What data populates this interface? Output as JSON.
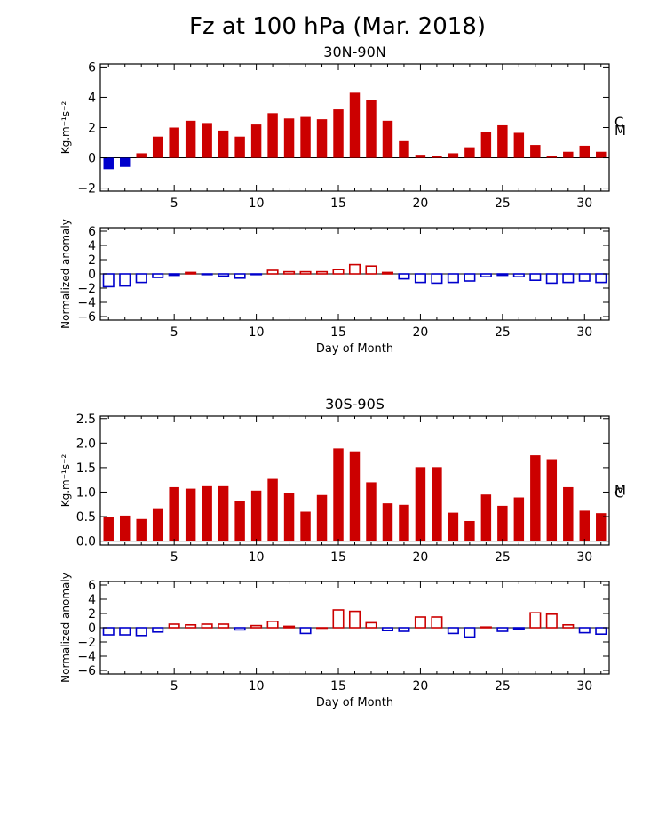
{
  "title": "Fz at 100 hPa (Mar. 2018)",
  "colors": {
    "positive": "#cc0000",
    "negative": "#0000cc",
    "frame": "#000000"
  },
  "chart_data": [
    {
      "id": "nh-fz",
      "type": "bar",
      "title": "30N-90N",
      "ylabel": "Kg.m⁻¹s⁻²",
      "xlabel": "",
      "fill": true,
      "ylim": [
        -2.2,
        6.2
      ],
      "xlim": [
        0.5,
        31.5
      ],
      "yticks": [
        -2,
        0,
        2,
        4,
        6
      ],
      "ytick_labels": [
        "−2",
        "0",
        "2",
        "4",
        "6"
      ],
      "xticks": [
        5,
        10,
        15,
        20,
        25,
        30
      ],
      "xtick_labels": [
        "5",
        "10",
        "15",
        "20",
        "25",
        "30"
      ],
      "x": [
        1,
        2,
        3,
        4,
        5,
        6,
        7,
        8,
        9,
        10,
        11,
        12,
        13,
        14,
        15,
        16,
        17,
        18,
        19,
        20,
        21,
        22,
        23,
        24,
        25,
        26,
        27,
        28,
        29,
        30,
        31
      ],
      "values": [
        -0.75,
        -0.6,
        0.3,
        1.4,
        2.0,
        2.45,
        2.3,
        1.8,
        1.4,
        2.2,
        2.95,
        2.6,
        2.7,
        2.55,
        3.2,
        4.3,
        3.85,
        2.45,
        1.1,
        0.2,
        0.1,
        0.3,
        0.7,
        1.7,
        2.15,
        1.65,
        0.85,
        0.15,
        0.4,
        0.8,
        0.4
      ],
      "markers": [
        {
          "label": "C",
          "value": 2.4
        },
        {
          "label": "M",
          "value": 1.85
        }
      ]
    },
    {
      "id": "nh-anom",
      "type": "bar",
      "title": "",
      "ylabel": "Normalized anomaly",
      "xlabel": "Day of Month",
      "fill": false,
      "ylim": [
        -6.5,
        6.5
      ],
      "xlim": [
        0.5,
        31.5
      ],
      "yticks": [
        -6,
        -4,
        -2,
        0,
        2,
        4,
        6
      ],
      "ytick_labels": [
        "−6",
        "−4",
        "−2",
        "0",
        "2",
        "4",
        "6"
      ],
      "xticks": [
        5,
        10,
        15,
        20,
        25,
        30
      ],
      "xtick_labels": [
        "5",
        "10",
        "15",
        "20",
        "25",
        "30"
      ],
      "x": [
        1,
        2,
        3,
        4,
        5,
        6,
        7,
        8,
        9,
        10,
        11,
        12,
        13,
        14,
        15,
        16,
        17,
        18,
        19,
        20,
        21,
        22,
        23,
        24,
        25,
        26,
        27,
        28,
        29,
        30,
        31
      ],
      "values": [
        -1.8,
        -1.7,
        -1.2,
        -0.5,
        -0.2,
        0.2,
        -0.1,
        -0.3,
        -0.6,
        -0.1,
        0.5,
        0.3,
        0.3,
        0.3,
        0.6,
        1.3,
        1.1,
        0.2,
        -0.7,
        -1.2,
        -1.3,
        -1.2,
        -1.0,
        -0.4,
        -0.2,
        -0.4,
        -0.9,
        -1.3,
        -1.2,
        -1.0,
        -1.2
      ],
      "markers": []
    },
    {
      "id": "sh-fz",
      "type": "bar",
      "title": "30S-90S",
      "ylabel": "Kg.m⁻¹s⁻²",
      "xlabel": "",
      "fill": true,
      "ylim": [
        -0.08,
        2.55
      ],
      "xlim": [
        0.5,
        31.5
      ],
      "yticks": [
        0.0,
        0.5,
        1.0,
        1.5,
        2.0,
        2.5
      ],
      "ytick_labels": [
        "0.0",
        "0.5",
        "1.0",
        "1.5",
        "2.0",
        "2.5"
      ],
      "xticks": [
        5,
        10,
        15,
        20,
        25,
        30
      ],
      "xtick_labels": [
        "5",
        "10",
        "15",
        "20",
        "25",
        "30"
      ],
      "x": [
        1,
        2,
        3,
        4,
        5,
        6,
        7,
        8,
        9,
        10,
        11,
        12,
        13,
        14,
        15,
        16,
        17,
        18,
        19,
        20,
        21,
        22,
        23,
        24,
        25,
        26,
        27,
        28,
        29,
        30,
        31
      ],
      "values": [
        0.5,
        0.52,
        0.45,
        0.67,
        1.1,
        1.07,
        1.12,
        1.12,
        0.81,
        1.03,
        1.27,
        0.98,
        0.6,
        0.94,
        1.89,
        1.83,
        1.2,
        0.77,
        0.74,
        1.51,
        1.51,
        0.58,
        0.41,
        0.95,
        0.72,
        0.89,
        1.75,
        1.67,
        1.1,
        0.62,
        0.57
      ],
      "markers": [
        {
          "label": "C",
          "value": 1.0
        },
        {
          "label": "M",
          "value": 1.05
        }
      ]
    },
    {
      "id": "sh-anom",
      "type": "bar",
      "title": "",
      "ylabel": "Normalized anomaly",
      "xlabel": "Day of Month",
      "fill": false,
      "ylim": [
        -6.5,
        6.5
      ],
      "xlim": [
        0.5,
        31.5
      ],
      "yticks": [
        -6,
        -4,
        -2,
        0,
        2,
        4,
        6
      ],
      "ytick_labels": [
        "−6",
        "−4",
        "−2",
        "0",
        "2",
        "4",
        "6"
      ],
      "xticks": [
        5,
        10,
        15,
        20,
        25,
        30
      ],
      "xtick_labels": [
        "5",
        "10",
        "15",
        "20",
        "25",
        "30"
      ],
      "x": [
        1,
        2,
        3,
        4,
        5,
        6,
        7,
        8,
        9,
        10,
        11,
        12,
        13,
        14,
        15,
        16,
        17,
        18,
        19,
        20,
        21,
        22,
        23,
        24,
        25,
        26,
        27,
        28,
        29,
        30,
        31
      ],
      "values": [
        -1.0,
        -1.0,
        -1.1,
        -0.6,
        0.5,
        0.4,
        0.5,
        0.5,
        -0.3,
        0.3,
        0.9,
        0.2,
        -0.8,
        0.0,
        2.5,
        2.3,
        0.7,
        -0.4,
        -0.5,
        1.5,
        1.5,
        -0.8,
        -1.3,
        0.1,
        -0.5,
        -0.2,
        2.1,
        1.9,
        0.4,
        -0.7,
        -0.9
      ],
      "markers": []
    }
  ]
}
